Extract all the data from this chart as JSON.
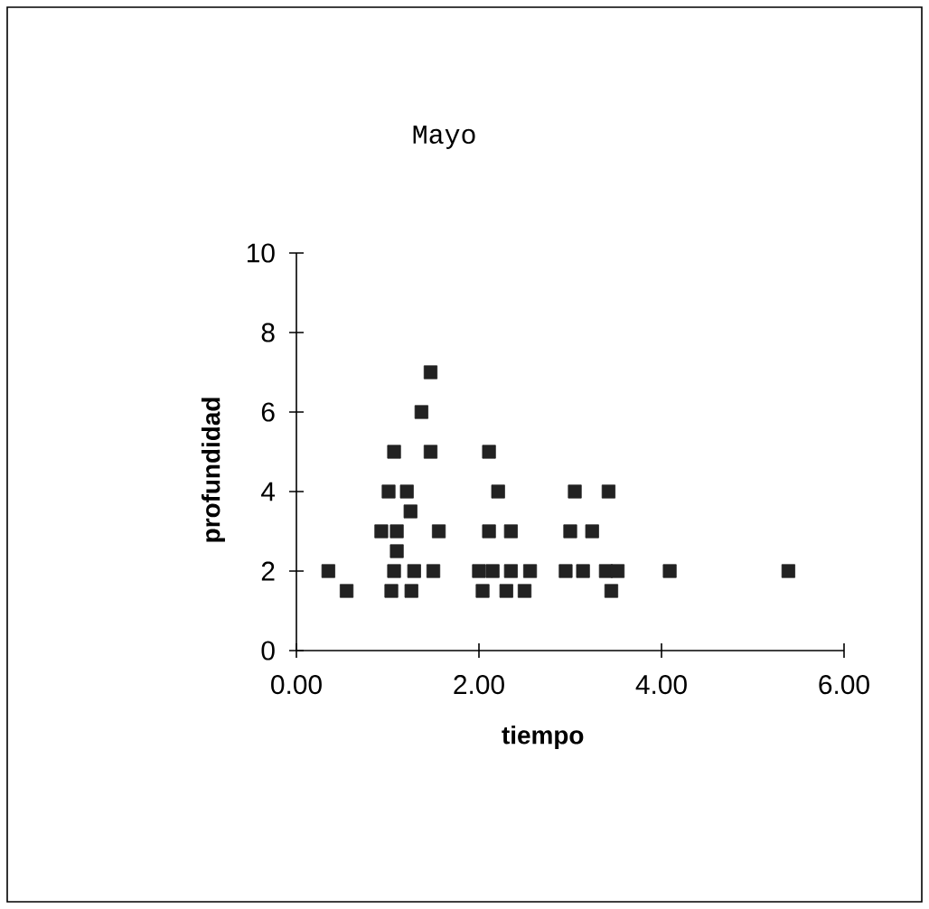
{
  "chart_data": {
    "type": "scatter",
    "title": "Mayo",
    "xlabel": "tiempo",
    "ylabel": "profundidad",
    "x": [
      0.35,
      0.55,
      1.04,
      1.26,
      0.93,
      1.07,
      1.01,
      1.21,
      1.1,
      1.1,
      1.25,
      1.29,
      1.5,
      1.56,
      1.07,
      1.47,
      1.37,
      1.47,
      2.0,
      2.15,
      2.35,
      2.56,
      2.04,
      2.3,
      2.5,
      2.11,
      2.35,
      2.21,
      2.11,
      2.95,
      3.14,
      3.39,
      3.52,
      3.0,
      3.24,
      3.05,
      3.42,
      3.45,
      4.09,
      5.39
    ],
    "values": [
      2,
      1.5,
      1.5,
      1.5,
      3,
      2,
      4,
      4,
      3,
      2.5,
      3.5,
      2,
      2,
      3,
      5,
      5,
      6,
      7,
      2,
      2,
      2,
      2,
      1.5,
      1.5,
      1.5,
      3,
      3,
      4,
      5,
      2,
      2,
      2,
      2,
      3,
      3,
      4,
      4,
      1.5,
      2,
      2
    ],
    "color": "#222222",
    "marker": "square",
    "xlim": [
      0,
      6
    ],
    "ylim": [
      0,
      10
    ],
    "xticks": [
      {
        "value": 0,
        "label": "0.00"
      },
      {
        "value": 2,
        "label": "2.00"
      },
      {
        "value": 4,
        "label": "4.00"
      },
      {
        "value": 6,
        "label": "6.00"
      }
    ],
    "yticks": [
      0,
      2,
      4,
      6,
      8,
      10
    ]
  }
}
